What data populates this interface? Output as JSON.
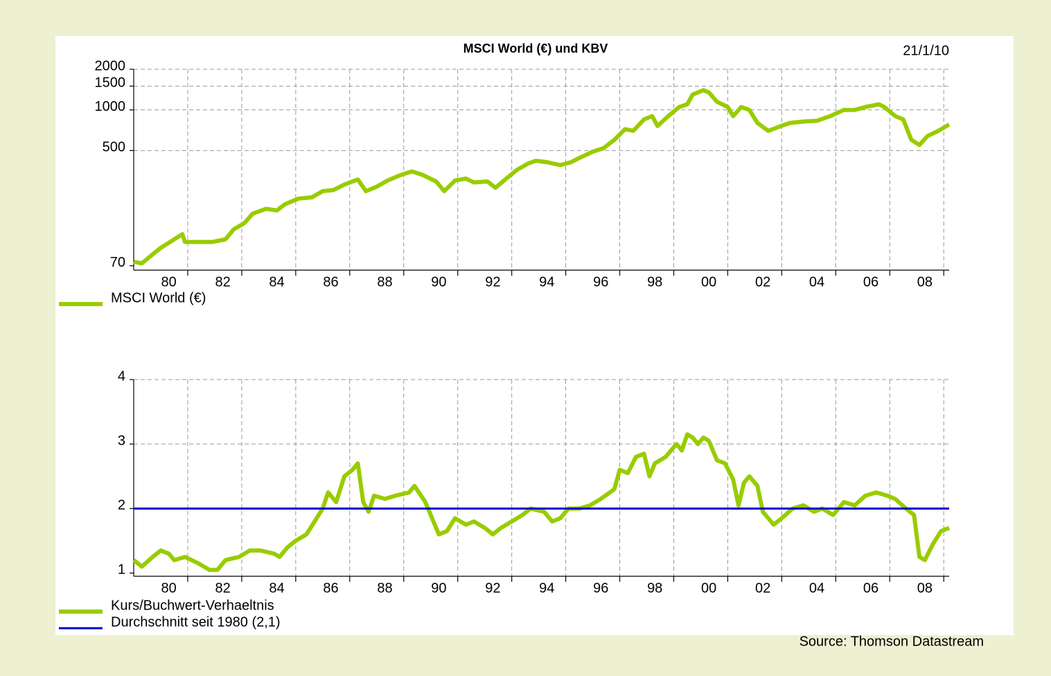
{
  "chart_data": [
    {
      "type": "line",
      "title": "MSCI World (€) und KBV",
      "date": "21/1/10",
      "log": true,
      "ylim": [
        65,
        2000
      ],
      "yticks": [
        70,
        500,
        1000,
        1500,
        2000
      ],
      "xlim": [
        1979,
        2009.2
      ],
      "xticks": [
        {
          "value": 1980.3,
          "label": "80"
        },
        {
          "value": 1982.3,
          "label": "82"
        },
        {
          "value": 1984.3,
          "label": "84"
        },
        {
          "value": 1986.3,
          "label": "86"
        },
        {
          "value": 1988.3,
          "label": "88"
        },
        {
          "value": 1990.3,
          "label": "90"
        },
        {
          "value": 1992.3,
          "label": "92"
        },
        {
          "value": 1994.3,
          "label": "94"
        },
        {
          "value": 1996.3,
          "label": "96"
        },
        {
          "value": 1998.3,
          "label": "98"
        },
        {
          "value": 2000.3,
          "label": "00"
        },
        {
          "value": 2002.3,
          "label": "02"
        },
        {
          "value": 2004.3,
          "label": "04"
        },
        {
          "value": 2006.3,
          "label": "06"
        },
        {
          "value": 2008.3,
          "label": "08"
        }
      ],
      "xgrid": [
        1981,
        1983,
        1985,
        1987,
        1989,
        1991,
        1993,
        1995,
        1997,
        1999,
        2001,
        2003,
        2005,
        2007,
        2009
      ],
      "grid": true,
      "series": [
        {
          "name": "MSCI World (€)",
          "color": "#99cc00",
          "x": [
            1979.0,
            1979.3,
            1979.7,
            1980.0,
            1980.5,
            1980.8,
            1980.9,
            1981.4,
            1981.9,
            1982.4,
            1982.7,
            1983.1,
            1983.4,
            1983.9,
            1984.3,
            1984.6,
            1985.1,
            1985.6,
            1986.0,
            1986.4,
            1986.8,
            1987.3,
            1987.6,
            1988.0,
            1988.4,
            1988.9,
            1989.3,
            1989.7,
            1990.2,
            1990.5,
            1990.9,
            1991.3,
            1991.6,
            1992.1,
            1992.4,
            1992.8,
            1993.2,
            1993.6,
            1993.9,
            1994.3,
            1994.8,
            1995.2,
            1995.5,
            1996.0,
            1996.4,
            1996.8,
            1997.2,
            1997.5,
            1997.9,
            1998.2,
            1998.4,
            1998.8,
            1999.2,
            1999.5,
            1999.7,
            2000.1,
            2000.3,
            2000.6,
            2001.0,
            2001.2,
            2001.5,
            2001.8,
            2002.1,
            2002.5,
            2002.9,
            2003.3,
            2003.8,
            2004.3,
            2004.8,
            2005.3,
            2005.7,
            2006.1,
            2006.6,
            2006.8,
            2007.2,
            2007.5,
            2007.8,
            2008.1,
            2008.4,
            2008.8,
            2009.2
          ],
          "values": [
            75,
            73,
            85,
            95,
            110,
            120,
            105,
            105,
            105,
            110,
            130,
            145,
            170,
            185,
            180,
            200,
            220,
            225,
            250,
            255,
            280,
            305,
            250,
            270,
            300,
            330,
            350,
            330,
            295,
            250,
            300,
            310,
            290,
            295,
            265,
            310,
            360,
            400,
            420,
            410,
            390,
            410,
            440,
            490,
            520,
            600,
            720,
            700,
            850,
            900,
            760,
            900,
            1050,
            1100,
            1300,
            1400,
            1350,
            1150,
            1050,
            900,
            1050,
            1000,
            800,
            700,
            750,
            800,
            820,
            830,
            900,
            1000,
            1000,
            1050,
            1100,
            1050,
            900,
            850,
            600,
            550,
            640,
            700,
            780
          ]
        }
      ]
    },
    {
      "type": "line",
      "source": "Source: Thomson Datastream",
      "ylim": [
        0.95,
        4
      ],
      "yticks": [
        1,
        2,
        3,
        4
      ],
      "xlim": [
        1979,
        2009.2
      ],
      "xticks": [
        {
          "value": 1980.3,
          "label": "80"
        },
        {
          "value": 1982.3,
          "label": "82"
        },
        {
          "value": 1984.3,
          "label": "84"
        },
        {
          "value": 1986.3,
          "label": "86"
        },
        {
          "value": 1988.3,
          "label": "88"
        },
        {
          "value": 1990.3,
          "label": "90"
        },
        {
          "value": 1992.3,
          "label": "92"
        },
        {
          "value": 1994.3,
          "label": "94"
        },
        {
          "value": 1996.3,
          "label": "96"
        },
        {
          "value": 1998.3,
          "label": "98"
        },
        {
          "value": 2000.3,
          "label": "00"
        },
        {
          "value": 2002.3,
          "label": "02"
        },
        {
          "value": 2004.3,
          "label": "04"
        },
        {
          "value": 2006.3,
          "label": "06"
        },
        {
          "value": 2008.3,
          "label": "08"
        }
      ],
      "xgrid": [
        1981,
        1983,
        1985,
        1987,
        1989,
        1991,
        1993,
        1995,
        1997,
        1999,
        2001,
        2003,
        2005,
        2007,
        2009
      ],
      "grid": true,
      "series": [
        {
          "name": "Kurs/Buchwert-Verhaeltnis",
          "color": "#99cc00",
          "x": [
            1979.0,
            1979.3,
            1979.7,
            1980.0,
            1980.3,
            1980.5,
            1980.9,
            1981.4,
            1981.8,
            1982.1,
            1982.4,
            1982.9,
            1983.3,
            1983.7,
            1984.2,
            1984.4,
            1984.7,
            1985.0,
            1985.4,
            1985.7,
            1986.0,
            1986.2,
            1986.5,
            1986.8,
            1987.1,
            1987.3,
            1987.5,
            1987.7,
            1987.9,
            1988.3,
            1988.7,
            1989.2,
            1989.4,
            1989.8,
            1990.1,
            1990.3,
            1990.6,
            1990.9,
            1991.3,
            1991.6,
            1992.0,
            1992.3,
            1992.6,
            1993.0,
            1993.4,
            1993.7,
            1994.2,
            1994.5,
            1994.8,
            1995.1,
            1995.5,
            1995.9,
            1996.3,
            1996.8,
            1997.0,
            1997.3,
            1997.6,
            1997.9,
            1998.1,
            1998.3,
            1998.7,
            1999.1,
            1999.3,
            1999.5,
            1999.7,
            1999.9,
            2000.1,
            2000.3,
            2000.6,
            2000.9,
            2001.2,
            2001.4,
            2001.6,
            2001.8,
            2002.1,
            2002.3,
            2002.7,
            2003.0,
            2003.4,
            2003.8,
            2004.2,
            2004.5,
            2004.9,
            2005.3,
            2005.7,
            2006.1,
            2006.5,
            2006.9,
            2007.2,
            2007.6,
            2007.9,
            2008.1,
            2008.3,
            2008.6,
            2008.9,
            2009.2
          ],
          "values": [
            1.2,
            1.1,
            1.25,
            1.35,
            1.3,
            1.2,
            1.25,
            1.15,
            1.05,
            1.05,
            1.2,
            1.25,
            1.35,
            1.35,
            1.3,
            1.25,
            1.4,
            1.5,
            1.6,
            1.8,
            2.0,
            2.25,
            2.1,
            2.5,
            2.6,
            2.7,
            2.1,
            1.95,
            2.2,
            2.15,
            2.2,
            2.25,
            2.35,
            2.1,
            1.8,
            1.6,
            1.65,
            1.85,
            1.75,
            1.8,
            1.7,
            1.6,
            1.7,
            1.8,
            1.9,
            2.0,
            1.95,
            1.8,
            1.85,
            2.0,
            2.0,
            2.05,
            2.15,
            2.3,
            2.6,
            2.55,
            2.8,
            2.85,
            2.5,
            2.7,
            2.8,
            3.0,
            2.9,
            3.15,
            3.1,
            3.0,
            3.1,
            3.05,
            2.75,
            2.7,
            2.45,
            2.05,
            2.4,
            2.5,
            2.35,
            1.95,
            1.75,
            1.85,
            2.0,
            2.05,
            1.95,
            2.0,
            1.9,
            2.1,
            2.05,
            2.2,
            2.25,
            2.2,
            2.15,
            2.0,
            1.9,
            1.25,
            1.2,
            1.45,
            1.65,
            1.7
          ]
        },
        {
          "name": "Durchschnitt seit 1980 (2,1)",
          "color": "#0000cc",
          "x": [
            1979,
            2009.2
          ],
          "values": [
            2,
            2
          ]
        }
      ]
    }
  ]
}
